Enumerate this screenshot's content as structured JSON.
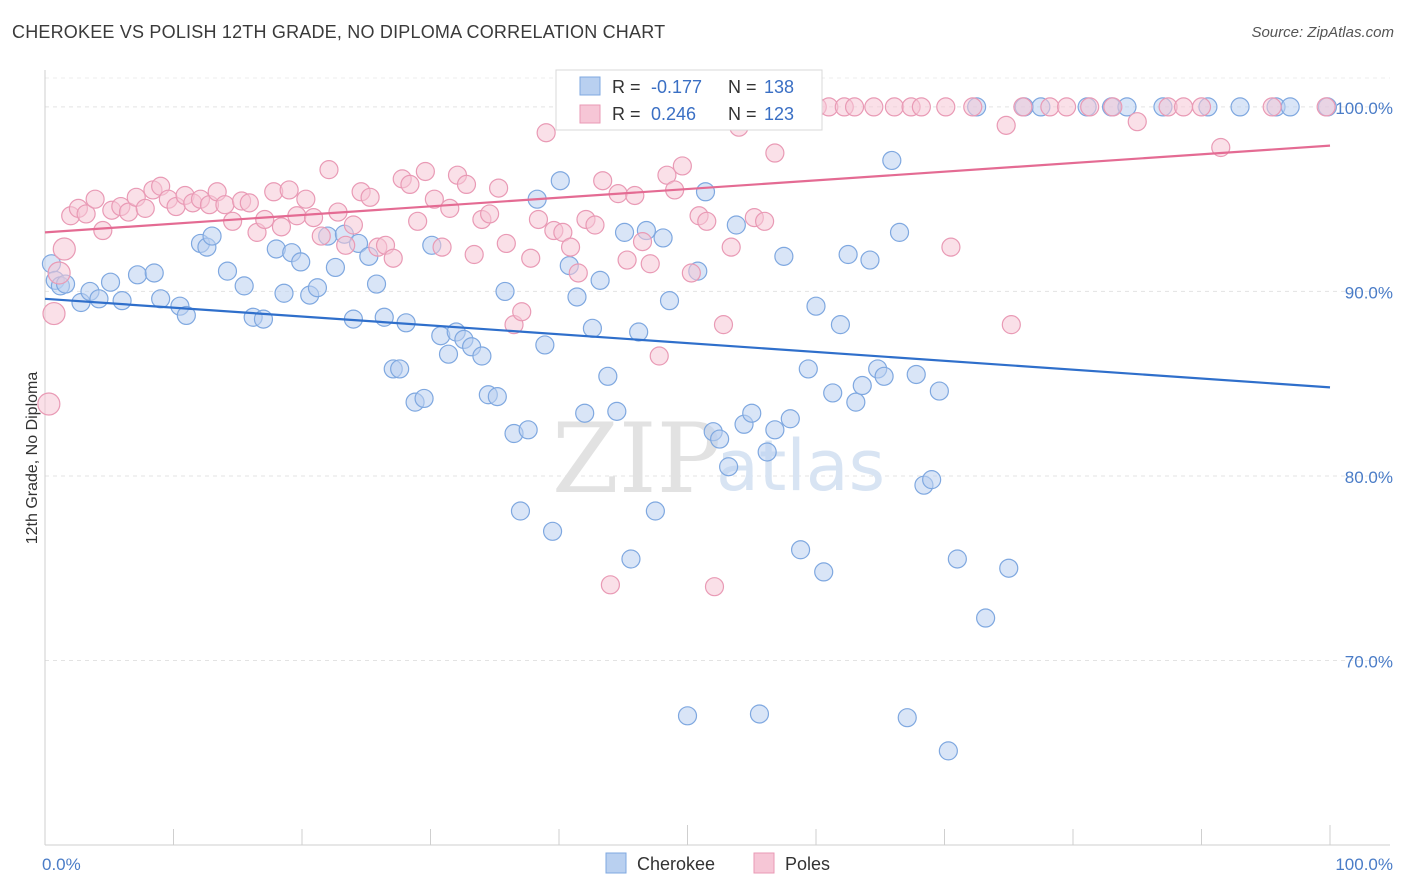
{
  "title": "CHEROKEE VS POLISH 12TH GRADE, NO DIPLOMA CORRELATION CHART",
  "source": "Source: ZipAtlas.com",
  "watermark": {
    "zip": "ZIP",
    "atlas": "atlas"
  },
  "chart_data": {
    "type": "scatter",
    "xlabel": "",
    "ylabel": "12th Grade, No Diploma",
    "xlim": [
      0,
      100
    ],
    "ylim": [
      60,
      102
    ],
    "x_tick_labels": {
      "left": "0.0%",
      "right": "100.0%"
    },
    "y_ticks": [
      {
        "value": 100,
        "label": "100.0%"
      },
      {
        "value": 90,
        "label": "90.0%"
      },
      {
        "value": 80,
        "label": "80.0%"
      },
      {
        "value": 70,
        "label": "70.0%"
      }
    ],
    "grid": true,
    "legend_position": "bottom-center",
    "stats_box": [
      {
        "r_label": "R =",
        "r_value": "-0.177",
        "n_label": "N =",
        "n_value": "138"
      },
      {
        "r_label": "R =",
        "r_value": "0.246",
        "n_label": "N =",
        "n_value": "123"
      }
    ],
    "series": [
      {
        "name": "Cherokee",
        "color": "#7fa8e0",
        "fill": "#b9d0f0",
        "trend_color": "#2f6fcb",
        "trend": {
          "x": [
            0,
            100
          ],
          "y": [
            89.6,
            84.8
          ]
        },
        "points": [
          [
            0.5,
            91.5
          ],
          [
            0.8,
            90.6
          ],
          [
            1.2,
            90.3
          ],
          [
            1.6,
            90.4
          ],
          [
            2.8,
            89.4
          ],
          [
            3.5,
            90.0
          ],
          [
            4.2,
            89.6
          ],
          [
            5.1,
            90.5
          ],
          [
            6.0,
            89.5
          ],
          [
            7.2,
            90.9
          ],
          [
            8.5,
            91.0
          ],
          [
            9.0,
            89.6
          ],
          [
            10.5,
            89.2
          ],
          [
            11.0,
            88.7
          ],
          [
            12.1,
            92.6
          ],
          [
            12.6,
            92.4
          ],
          [
            13.0,
            93.0
          ],
          [
            14.2,
            91.1
          ],
          [
            15.5,
            90.3
          ],
          [
            16.2,
            88.6
          ],
          [
            17.0,
            88.5
          ],
          [
            18.0,
            92.3
          ],
          [
            18.6,
            89.9
          ],
          [
            19.2,
            92.1
          ],
          [
            19.9,
            91.6
          ],
          [
            20.6,
            89.8
          ],
          [
            21.2,
            90.2
          ],
          [
            22.0,
            93.0
          ],
          [
            22.6,
            91.3
          ],
          [
            23.3,
            93.1
          ],
          [
            24.0,
            88.5
          ],
          [
            24.4,
            92.6
          ],
          [
            25.2,
            91.9
          ],
          [
            25.8,
            90.4
          ],
          [
            26.4,
            88.6
          ],
          [
            27.1,
            85.8
          ],
          [
            27.6,
            85.8
          ],
          [
            28.1,
            88.3
          ],
          [
            28.8,
            84.0
          ],
          [
            29.5,
            84.2
          ],
          [
            30.1,
            92.5
          ],
          [
            30.8,
            87.6
          ],
          [
            31.4,
            86.6
          ],
          [
            32.0,
            87.8
          ],
          [
            32.6,
            87.4
          ],
          [
            33.2,
            87.0
          ],
          [
            34.0,
            86.5
          ],
          [
            34.5,
            84.4
          ],
          [
            35.2,
            84.3
          ],
          [
            35.8,
            90.0
          ],
          [
            36.5,
            82.3
          ],
          [
            37.0,
            78.1
          ],
          [
            37.6,
            82.5
          ],
          [
            38.3,
            95.0
          ],
          [
            38.9,
            87.1
          ],
          [
            39.5,
            77.0
          ],
          [
            40.1,
            96.0
          ],
          [
            40.8,
            91.4
          ],
          [
            41.4,
            89.7
          ],
          [
            42.0,
            83.4
          ],
          [
            42.6,
            88.0
          ],
          [
            43.2,
            90.6
          ],
          [
            43.8,
            85.4
          ],
          [
            44.5,
            83.5
          ],
          [
            45.1,
            93.2
          ],
          [
            45.6,
            75.5
          ],
          [
            46.2,
            87.8
          ],
          [
            46.8,
            93.3
          ],
          [
            47.5,
            78.1
          ],
          [
            48.1,
            92.9
          ],
          [
            48.6,
            89.5
          ],
          [
            49.2,
            99.5
          ],
          [
            50.0,
            67.0
          ],
          [
            50.8,
            91.1
          ],
          [
            51.4,
            95.4
          ],
          [
            52.0,
            82.4
          ],
          [
            52.5,
            82.0
          ],
          [
            53.2,
            80.5
          ],
          [
            53.8,
            93.6
          ],
          [
            54.4,
            82.8
          ],
          [
            55.0,
            83.4
          ],
          [
            55.6,
            67.1
          ],
          [
            56.2,
            81.3
          ],
          [
            56.8,
            82.5
          ],
          [
            57.5,
            91.9
          ],
          [
            58.0,
            83.1
          ],
          [
            58.8,
            76.0
          ],
          [
            59.4,
            85.8
          ],
          [
            60.0,
            89.2
          ],
          [
            60.6,
            74.8
          ],
          [
            61.3,
            84.5
          ],
          [
            61.9,
            88.2
          ],
          [
            62.5,
            92.0
          ],
          [
            63.1,
            84.0
          ],
          [
            63.6,
            84.9
          ],
          [
            64.2,
            91.7
          ],
          [
            64.8,
            85.8
          ],
          [
            65.3,
            85.4
          ],
          [
            65.9,
            97.1
          ],
          [
            66.5,
            93.2
          ],
          [
            67.1,
            66.9
          ],
          [
            67.8,
            85.5
          ],
          [
            68.4,
            79.5
          ],
          [
            69.0,
            79.8
          ],
          [
            69.6,
            84.6
          ],
          [
            70.3,
            65.1
          ],
          [
            71.0,
            75.5
          ],
          [
            72.5,
            100.0
          ],
          [
            73.2,
            72.3
          ],
          [
            75.0,
            75.0
          ],
          [
            76.2,
            100.0
          ],
          [
            77.5,
            100.0
          ],
          [
            81.1,
            100.0
          ],
          [
            83.0,
            100.0
          ],
          [
            84.2,
            100.0
          ],
          [
            87.0,
            100.0
          ],
          [
            90.5,
            100.0
          ],
          [
            93.0,
            100.0
          ],
          [
            95.8,
            100.0
          ],
          [
            96.9,
            100.0
          ],
          [
            99.8,
            100.0
          ]
        ]
      },
      {
        "name": "Poles",
        "color": "#e99ab5",
        "fill": "#f6c6d6",
        "trend_color": "#e46b93",
        "trend": {
          "x": [
            0,
            100
          ],
          "y": [
            93.2,
            97.9
          ]
        },
        "points": [
          [
            0.3,
            83.9
          ],
          [
            0.7,
            88.8
          ],
          [
            1.1,
            91.0
          ],
          [
            1.5,
            92.3
          ],
          [
            2.0,
            94.1
          ],
          [
            2.6,
            94.5
          ],
          [
            3.2,
            94.2
          ],
          [
            3.9,
            95.0
          ],
          [
            4.5,
            93.3
          ],
          [
            5.2,
            94.4
          ],
          [
            5.9,
            94.6
          ],
          [
            6.5,
            94.3
          ],
          [
            7.1,
            95.1
          ],
          [
            7.8,
            94.5
          ],
          [
            8.4,
            95.5
          ],
          [
            9.0,
            95.7
          ],
          [
            9.6,
            95.0
          ],
          [
            10.2,
            94.6
          ],
          [
            10.9,
            95.2
          ],
          [
            11.5,
            94.8
          ],
          [
            12.1,
            95.0
          ],
          [
            12.8,
            94.7
          ],
          [
            13.4,
            95.4
          ],
          [
            14.0,
            94.7
          ],
          [
            14.6,
            93.8
          ],
          [
            15.3,
            94.9
          ],
          [
            15.9,
            94.8
          ],
          [
            16.5,
            93.2
          ],
          [
            17.1,
            93.9
          ],
          [
            17.8,
            95.4
          ],
          [
            18.4,
            93.5
          ],
          [
            19.0,
            95.5
          ],
          [
            19.6,
            94.1
          ],
          [
            20.3,
            95.0
          ],
          [
            20.9,
            94.0
          ],
          [
            21.5,
            93.0
          ],
          [
            22.1,
            96.6
          ],
          [
            22.8,
            94.3
          ],
          [
            23.4,
            92.5
          ],
          [
            24.0,
            93.6
          ],
          [
            24.6,
            95.4
          ],
          [
            25.3,
            95.1
          ],
          [
            25.9,
            92.4
          ],
          [
            26.5,
            92.5
          ],
          [
            27.1,
            91.8
          ],
          [
            27.8,
            96.1
          ],
          [
            28.4,
            95.8
          ],
          [
            29.0,
            93.8
          ],
          [
            29.6,
            96.5
          ],
          [
            30.3,
            95.0
          ],
          [
            30.9,
            92.4
          ],
          [
            31.5,
            94.5
          ],
          [
            32.1,
            96.3
          ],
          [
            32.8,
            95.8
          ],
          [
            33.4,
            92.0
          ],
          [
            34.0,
            93.9
          ],
          [
            34.6,
            94.2
          ],
          [
            35.3,
            95.6
          ],
          [
            35.9,
            92.6
          ],
          [
            36.5,
            88.2
          ],
          [
            37.1,
            88.9
          ],
          [
            37.8,
            91.8
          ],
          [
            38.4,
            93.9
          ],
          [
            39.0,
            98.6
          ],
          [
            39.6,
            93.3
          ],
          [
            40.3,
            93.2
          ],
          [
            40.9,
            92.4
          ],
          [
            41.5,
            91.0
          ],
          [
            42.1,
            93.9
          ],
          [
            42.8,
            93.6
          ],
          [
            43.4,
            96.0
          ],
          [
            44.0,
            74.1
          ],
          [
            44.6,
            95.3
          ],
          [
            45.3,
            91.7
          ],
          [
            45.9,
            95.2
          ],
          [
            46.5,
            92.7
          ],
          [
            47.1,
            91.5
          ],
          [
            47.8,
            86.5
          ],
          [
            48.4,
            96.3
          ],
          [
            49.0,
            95.5
          ],
          [
            49.6,
            96.8
          ],
          [
            50.3,
            91.0
          ],
          [
            50.9,
            94.1
          ],
          [
            51.5,
            93.8
          ],
          [
            52.1,
            74.0
          ],
          [
            52.8,
            88.2
          ],
          [
            53.4,
            92.4
          ],
          [
            54.0,
            98.9
          ],
          [
            55.2,
            94.0
          ],
          [
            56.0,
            93.8
          ],
          [
            57.0,
            99.5
          ],
          [
            58.0,
            100.0
          ],
          [
            59.3,
            100.0
          ],
          [
            60.1,
            100.0
          ],
          [
            61.0,
            100.0
          ],
          [
            62.2,
            100.0
          ],
          [
            63.0,
            100.0
          ],
          [
            64.5,
            100.0
          ],
          [
            66.1,
            100.0
          ],
          [
            67.4,
            100.0
          ],
          [
            68.2,
            100.0
          ],
          [
            70.1,
            100.0
          ],
          [
            72.2,
            100.0
          ],
          [
            74.8,
            99.0
          ],
          [
            76.1,
            100.0
          ],
          [
            78.2,
            100.0
          ],
          [
            79.5,
            100.0
          ],
          [
            81.3,
            100.0
          ],
          [
            83.1,
            100.0
          ],
          [
            85.0,
            99.2
          ],
          [
            87.4,
            100.0
          ],
          [
            88.6,
            100.0
          ],
          [
            90.0,
            100.0
          ],
          [
            91.5,
            97.8
          ],
          [
            95.5,
            100.0
          ],
          [
            99.7,
            100.0
          ],
          [
            70.5,
            92.4
          ],
          [
            75.2,
            88.2
          ],
          [
            56.8,
            97.5
          ]
        ]
      }
    ]
  }
}
